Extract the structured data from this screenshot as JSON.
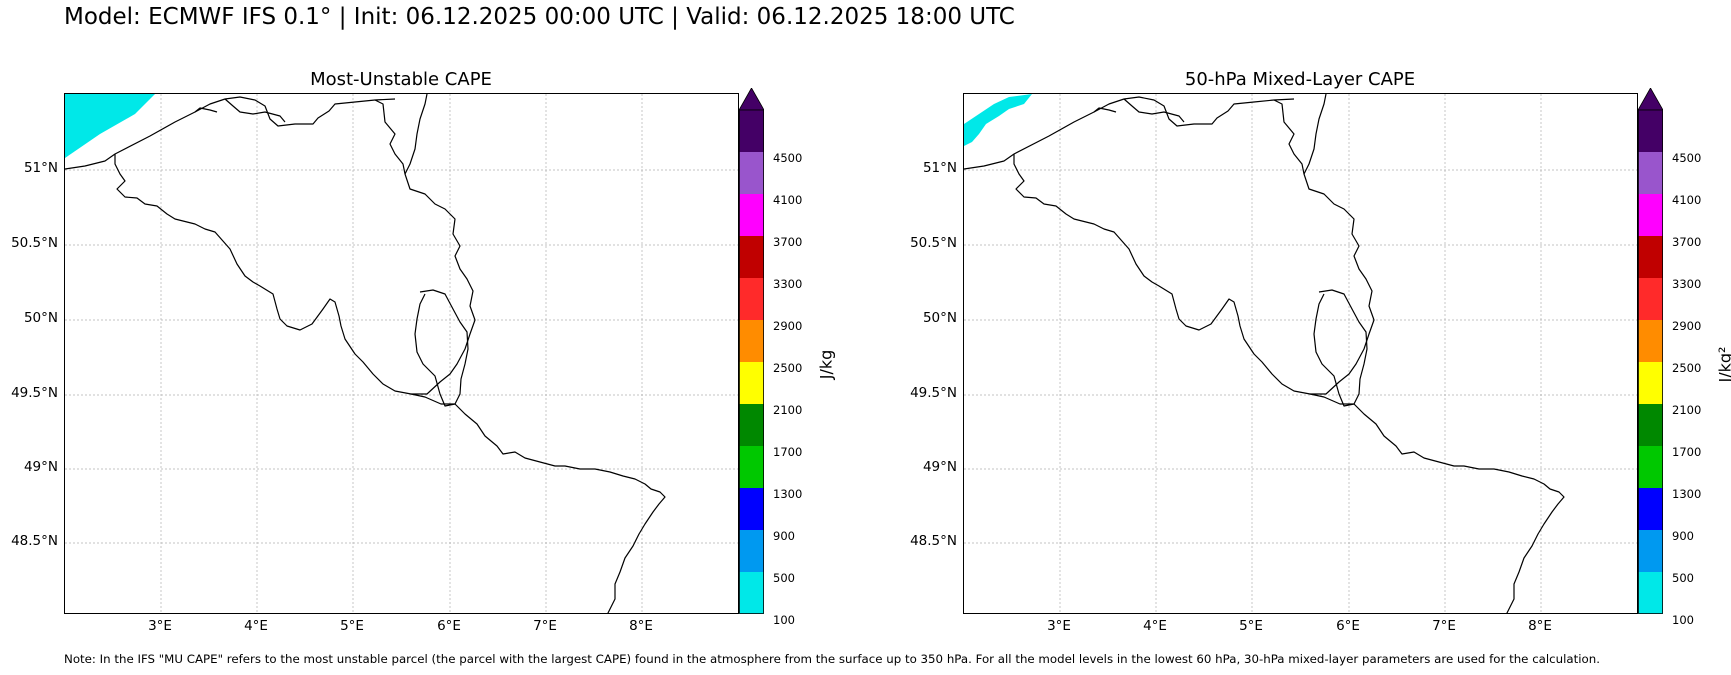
{
  "header": {
    "title": "Model: ECMWF IFS 0.1° | Init: 06.12.2025 00:00 UTC | Valid: 06.12.2025 18:00 UTC"
  },
  "panels": [
    {
      "title": "Most-Unstable CAPE",
      "unit_label": "J/kg"
    },
    {
      "title": "50-hPa Mixed-Layer CAPE",
      "unit_label": "J/kg²"
    }
  ],
  "axes": {
    "lat_labels": [
      "51°N",
      "50.5°N",
      "50°N",
      "49.5°N",
      "49°N",
      "48.5°N"
    ],
    "lon_labels": [
      "3°E",
      "4°E",
      "5°E",
      "6°E",
      "7°E",
      "8°E"
    ]
  },
  "colorbar": {
    "ticks": [
      "100",
      "500",
      "900",
      "1300",
      "1700",
      "2100",
      "2500",
      "2900",
      "3300",
      "3700",
      "4100",
      "4500"
    ],
    "colors": [
      "#00e8e8",
      "#0099f0",
      "#0000ff",
      "#00c800",
      "#008800",
      "#ffff00",
      "#ff8c00",
      "#ff2a2a",
      "#c00000",
      "#ff00ff",
      "#9955cc",
      "#440066"
    ],
    "extend_color": "#440066"
  },
  "note": {
    "text": "Note: In the IFS \"MU CAPE\" refers to the most unstable parcel (the parcel with the largest CAPE) found in the atmosphere from the surface up to 350 hPa. For all the model levels in the lowest 60 hPa, 30-hPa mixed-layer parameters are used for the calculation."
  }
}
